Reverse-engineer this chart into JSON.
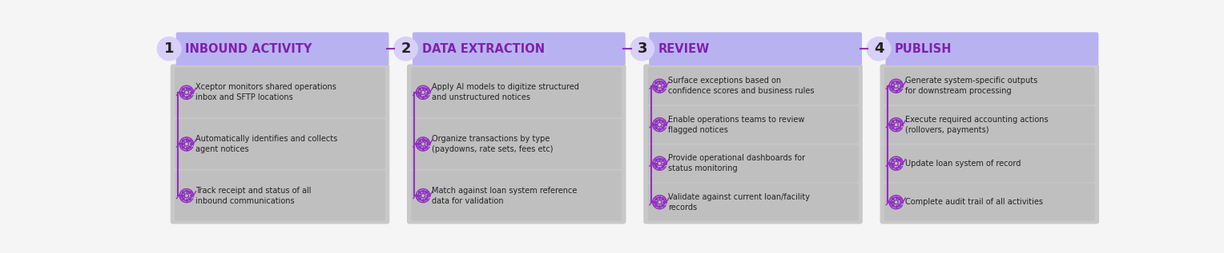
{
  "background_color": "#f0f0f0",
  "page_bg": "#f5f5f5",
  "header_bg_color": "#b8b3f0",
  "content_area_color": "#c8c8c8",
  "item_bg_color": "#c0bfbf",
  "connector_color": "#9030c0",
  "number_circle_color": "#d8d0f8",
  "title_color": "#8020b0",
  "number_color": "#222222",
  "text_color": "#222222",
  "sections": [
    {
      "number": "1",
      "title": "INBOUND ACTIVITY",
      "items": [
        "Xceptor monitors shared operations\ninbox and SFTP locations",
        "Automatically identifies and collects\nagent notices",
        "Track receipt and status of all\ninbound communications"
      ]
    },
    {
      "number": "2",
      "title": "DATA EXTRACTION",
      "items": [
        "Apply AI models to digitize structured\nand unstructured notices",
        "Organize transactions by type\n(paydowns, rate sets, fees etc)",
        "Match against loan system reference\ndata for validation"
      ]
    },
    {
      "number": "3",
      "title": "REVIEW",
      "items": [
        "Surface exceptions based on\nconfidence scores and business rules",
        "Enable operations teams to review\nflagged notices",
        "Provide operational dashboards for\nstatus monitoring",
        "Validate against current loan/facility\nrecords"
      ]
    },
    {
      "number": "4",
      "title": "PUBLISH",
      "items": [
        "Generate system-specific outputs\nfor downstream processing",
        "Execute required accounting actions\n(rollovers, payments)",
        "Update loan system of record",
        "Complete audit trail of all activities"
      ]
    }
  ]
}
